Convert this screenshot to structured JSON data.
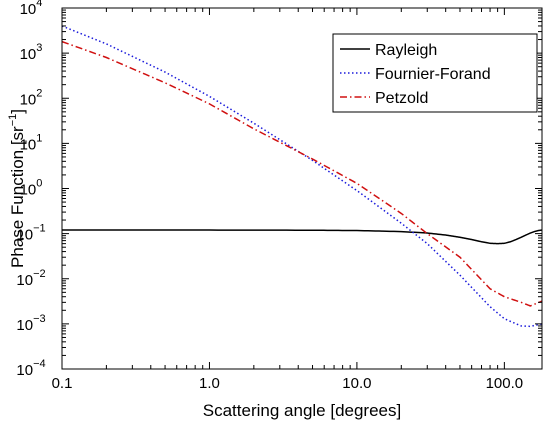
{
  "chart_data": {
    "type": "line",
    "title": "",
    "xlabel": "Scattering angle [degrees]",
    "ylabel_main": "Phase Function [sr",
    "ylabel_sup": "−1",
    "ylabel_close": "]",
    "x_scale": "log",
    "y_scale": "log",
    "xlim": [
      0.1,
      180
    ],
    "ylim": [
      0.0001,
      10000
    ],
    "grid": false,
    "legend_position": "top-right",
    "x_ticks": [
      {
        "value": 0.1,
        "label": "0.1"
      },
      {
        "value": 1,
        "label": "1.0"
      },
      {
        "value": 10,
        "label": "10.0"
      },
      {
        "value": 100,
        "label": "100.0"
      }
    ],
    "y_ticks": [
      {
        "value": 0.0001,
        "base": "10",
        "exp": "−4"
      },
      {
        "value": 0.001,
        "base": "10",
        "exp": "−3"
      },
      {
        "value": 0.01,
        "base": "10",
        "exp": "−2"
      },
      {
        "value": 0.1,
        "base": "10",
        "exp": "−1"
      },
      {
        "value": 1,
        "base": "10",
        "exp": "0"
      },
      {
        "value": 10,
        "base": "10",
        "exp": "1"
      },
      {
        "value": 100,
        "base": "10",
        "exp": "2"
      },
      {
        "value": 1000,
        "base": "10",
        "exp": "3"
      },
      {
        "value": 10000,
        "base": "10",
        "exp": "4"
      }
    ],
    "series": [
      {
        "name": "Rayleigh",
        "color": "#000000",
        "dash": "solid",
        "x": [
          0.1,
          1,
          5,
          10,
          20,
          30,
          40,
          50,
          60,
          70,
          80,
          90,
          100,
          110,
          120,
          130,
          140,
          150,
          160,
          170,
          180
        ],
        "y": [
          0.12,
          0.12,
          0.119,
          0.117,
          0.111,
          0.103,
          0.093,
          0.083,
          0.074,
          0.066,
          0.061,
          0.06,
          0.061,
          0.066,
          0.074,
          0.083,
          0.093,
          0.103,
          0.111,
          0.117,
          0.12
        ]
      },
      {
        "name": "Fournier-Forand",
        "color": "#1a1adb",
        "dash": "dotted",
        "x": [
          0.1,
          0.2,
          0.5,
          1,
          2,
          5,
          10,
          20,
          30,
          50,
          80,
          100,
          130,
          150,
          180
        ],
        "y": [
          4000,
          1600,
          380,
          110,
          28,
          4.2,
          0.9,
          0.17,
          0.06,
          0.012,
          0.0024,
          0.0013,
          0.0009,
          0.00088,
          0.001
        ]
      },
      {
        "name": "Petzold",
        "color": "#d01010",
        "dash": "dashdot",
        "x": [
          0.1,
          0.2,
          0.5,
          1,
          2,
          5,
          10,
          20,
          30,
          50,
          80,
          100,
          130,
          150,
          180
        ],
        "y": [
          1800,
          800,
          220,
          75,
          21,
          4.5,
          1.3,
          0.28,
          0.1,
          0.03,
          0.006,
          0.004,
          0.003,
          0.0025,
          0.0032
        ]
      }
    ]
  }
}
